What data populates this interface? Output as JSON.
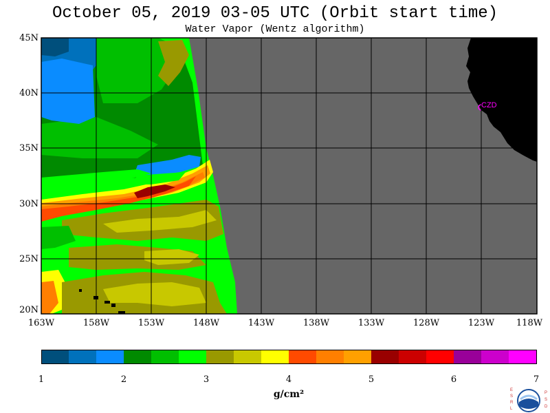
{
  "title": "October 05, 2019  03-05 UTC  (Orbit start time)",
  "subtitle": "Water Vapor (Wentz algorithm)",
  "lat_labels": [
    "45N",
    "40N",
    "35N",
    "30N",
    "25N",
    "20N"
  ],
  "lon_labels": [
    "163W",
    "158W",
    "153W",
    "148W",
    "143W",
    "138W",
    "133W",
    "128W",
    "123W",
    "118W"
  ],
  "station_label": "CZD",
  "colorbar": {
    "ticks": [
      "1",
      "2",
      "3",
      "4",
      "5",
      "6",
      "7"
    ],
    "units": "g/cm²",
    "colors": [
      "#004f7c",
      "#0071bc",
      "#0a8cff",
      "#008a00",
      "#00bf00",
      "#00ff00",
      "#999900",
      "#c8c800",
      "#ffff00",
      "#ff4a00",
      "#ff7f00",
      "#ffa000",
      "#990000",
      "#cc0000",
      "#ff0000",
      "#990099",
      "#cc00cc",
      "#ff00ff"
    ]
  },
  "colors": {
    "no_data": "#666666",
    "land": "#000000",
    "station": "#ff00ff"
  },
  "logo": {
    "left_text": "ESRL",
    "right_text": "PSD",
    "center_text": "NOAA"
  }
}
